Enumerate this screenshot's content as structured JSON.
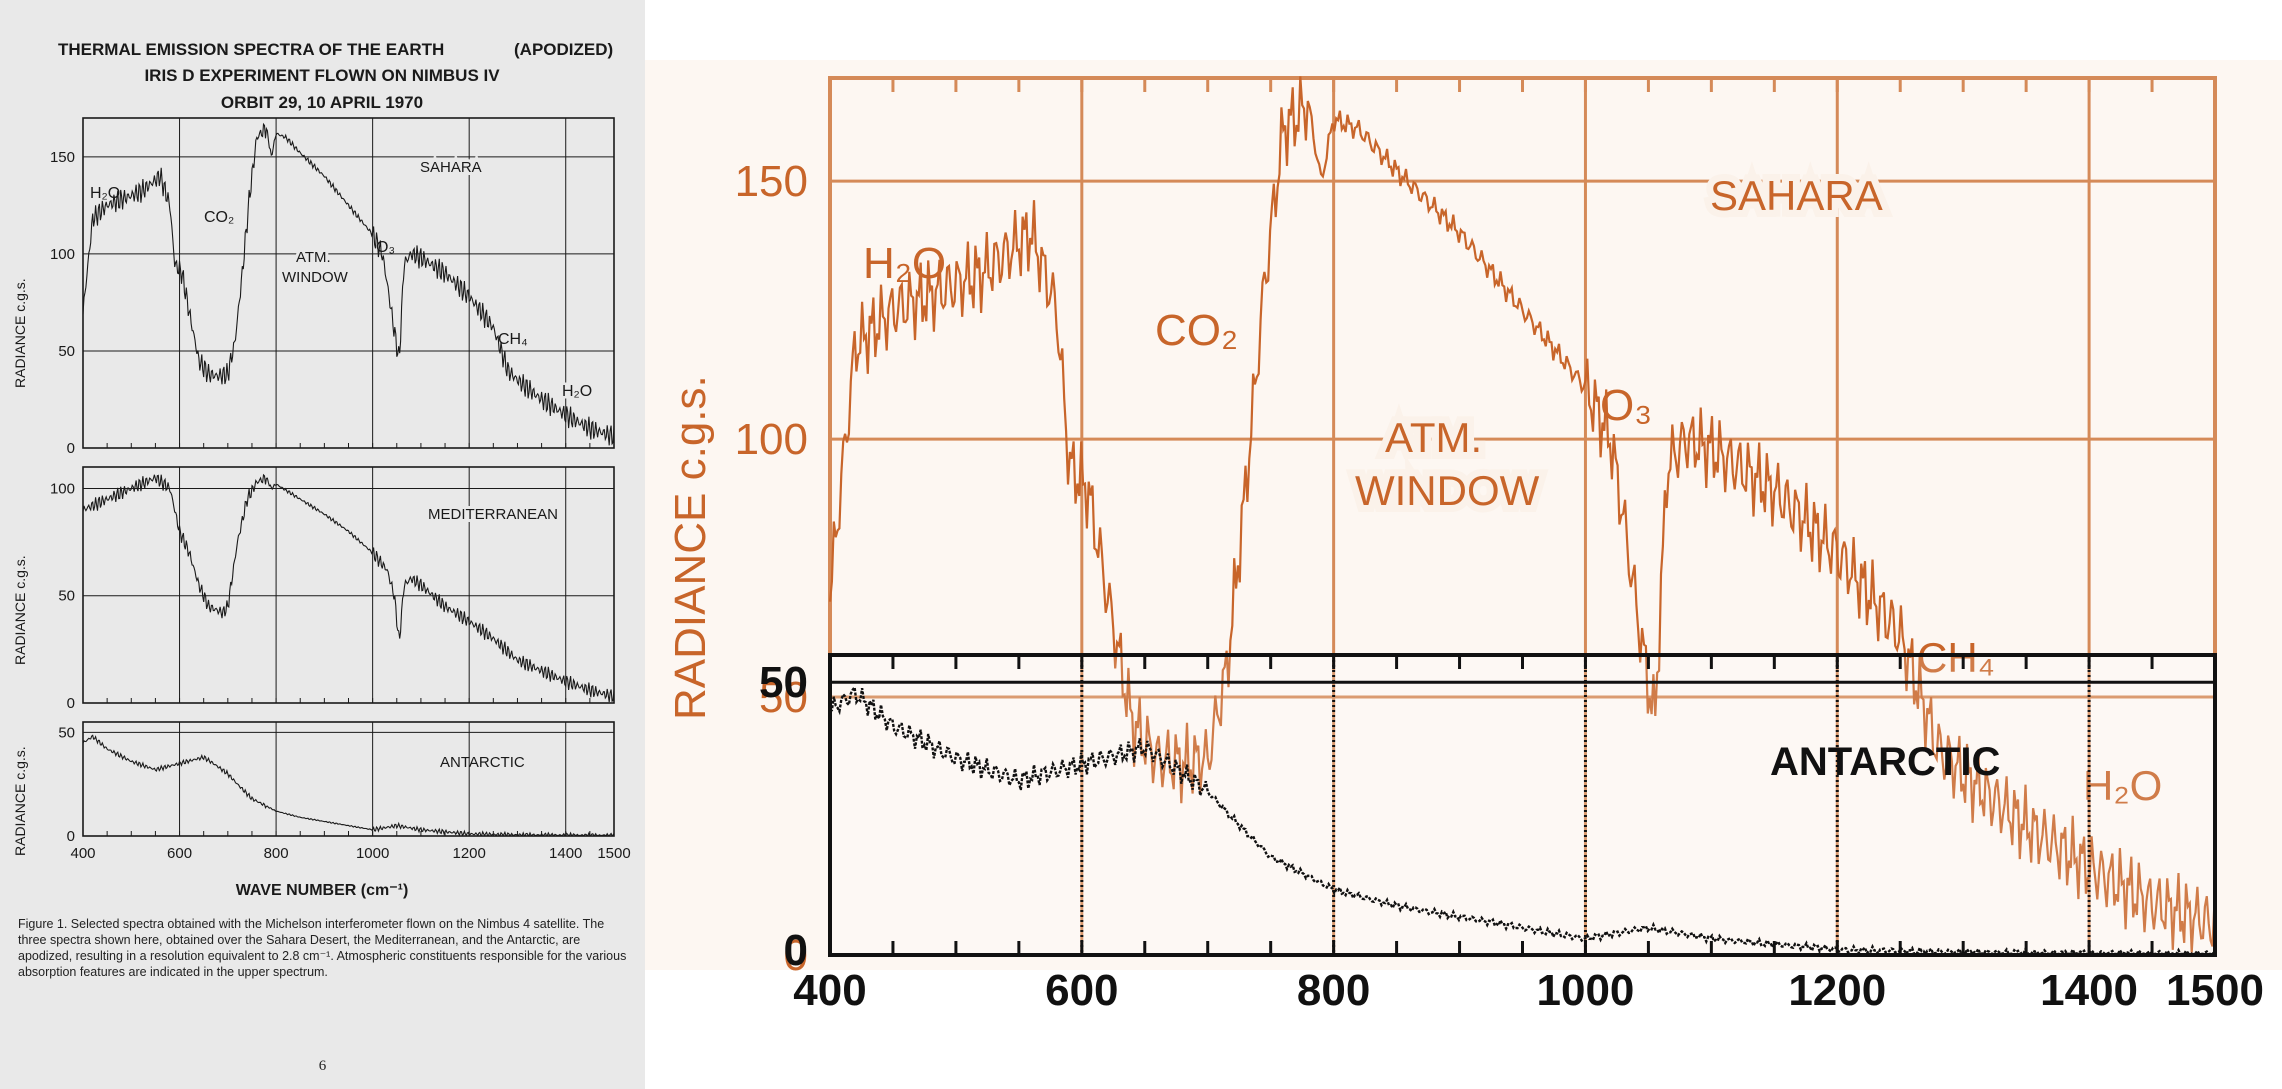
{
  "figure": {
    "title_line1": "THERMAL EMISSION SPECTRA OF THE EARTH",
    "title_apodized": "(APODIZED)",
    "title_line2": "IRIS D EXPERIMENT FLOWN ON NIMBUS IV",
    "title_line3": "ORBIT 29, 10 APRIL 1970",
    "caption": "Figure 1.  Selected spectra obtained with the Michelson interferometer flown on the Nimbus 4 satellite.  The three spectra shown here, obtained over the Sahara Desert, the Mediterranean, and the Antarctic, are apodized, resulting in a resolution equivalent to 2.8 cm⁻¹.  Atmospheric constituents responsible for the various absorption features are indicated in the upper spectrum.",
    "page_number": "6"
  },
  "colors": {
    "ink": "#1a1a1a",
    "overlay_orange": "#c8652a",
    "overlay_grid": "#d58a58",
    "left_background": "#e9e9e9"
  },
  "chart_data": [
    {
      "id": "sahara",
      "type": "line",
      "ylabel": "RADIANCE c.g.s.",
      "xlim": [
        400,
        1500
      ],
      "ylim": [
        0,
        170
      ],
      "yticks": [
        "0",
        "50",
        "100",
        "150"
      ],
      "label": "SAHARA",
      "annotations": [
        "H₂O",
        "CO₂",
        "ATM.",
        "WINDOW",
        "O₃",
        "CH₄",
        "H₂O"
      ],
      "series": [
        {
          "x": [
            400,
            420,
            450,
            480,
            520,
            560,
            580,
            590,
            605,
            620,
            640,
            660,
            680,
            700,
            715,
            730,
            745,
            760,
            780,
            790,
            800,
            820,
            850,
            900,
            950,
            1000,
            1020,
            1030,
            1045,
            1055,
            1065,
            1080,
            1100,
            1150,
            1200,
            1250,
            1280,
            1300,
            1350,
            1400,
            1450,
            1500
          ],
          "y": [
            70,
            118,
            125,
            128,
            132,
            140,
            125,
            95,
            90,
            70,
            45,
            38,
            37,
            38,
            55,
            90,
            130,
            160,
            165,
            150,
            162,
            160,
            152,
            140,
            125,
            110,
            100,
            85,
            60,
            45,
            95,
            100,
            98,
            90,
            78,
            62,
            40,
            35,
            25,
            17,
            10,
            6
          ]
        }
      ]
    },
    {
      "id": "mediterranean",
      "type": "line",
      "ylabel": "RADIANCE c.g.s.",
      "xlim": [
        400,
        1500
      ],
      "ylim": [
        0,
        110
      ],
      "yticks": [
        "0",
        "50",
        "100"
      ],
      "label": "MEDITERRANEAN",
      "series": [
        {
          "x": [
            400,
            450,
            500,
            550,
            580,
            600,
            620,
            640,
            660,
            690,
            700,
            720,
            740,
            760,
            780,
            790,
            800,
            850,
            900,
            950,
            1000,
            1030,
            1045,
            1055,
            1065,
            1080,
            1100,
            1150,
            1200,
            1250,
            1300,
            1350,
            1400,
            1450,
            1500
          ],
          "y": [
            90,
            95,
            100,
            105,
            100,
            80,
            70,
            55,
            45,
            42,
            45,
            75,
            95,
            103,
            105,
            100,
            102,
            95,
            88,
            80,
            70,
            62,
            50,
            28,
            55,
            58,
            55,
            45,
            38,
            30,
            20,
            15,
            10,
            6,
            3
          ]
        }
      ]
    },
    {
      "id": "antarctic",
      "type": "line",
      "ylabel": "RADIANCE c.g.s.",
      "xlim": [
        400,
        1500
      ],
      "ylim": [
        0,
        55
      ],
      "yticks": [
        "0",
        "50"
      ],
      "label": "ANTARCTIC",
      "xlabel": "WAVE NUMBER (cm⁻¹)",
      "xticks": [
        "400",
        "600",
        "800",
        "1000",
        "1200",
        "1400",
        "1500"
      ],
      "series": [
        {
          "x": [
            400,
            420,
            450,
            500,
            550,
            600,
            650,
            670,
            700,
            720,
            750,
            800,
            850,
            900,
            950,
            1000,
            1050,
            1100,
            1150,
            1200,
            1300,
            1400,
            1500
          ],
          "y": [
            45,
            48,
            42,
            36,
            32,
            35,
            38,
            35,
            30,
            25,
            18,
            12,
            9,
            7,
            5,
            3,
            5,
            3,
            2,
            1,
            0.5,
            0.3,
            0.2
          ]
        }
      ]
    }
  ],
  "zoom": {
    "ylabel": "RADIANCE c.g.s.",
    "yticks": [
      "0",
      "50",
      "100",
      "150"
    ],
    "xticks": [
      "400",
      "600",
      "800",
      "1000",
      "1200",
      "1400",
      "1500"
    ],
    "labels": {
      "sahara": "SAHARA",
      "h2o_left": "H₂O",
      "co2": "CO₂",
      "atm": "ATM.",
      "window": "WINDOW",
      "o3": "O₃",
      "ch4": "CH₄",
      "h2o_right": "H₂O",
      "antarctic": "ANTARCTIC"
    }
  }
}
